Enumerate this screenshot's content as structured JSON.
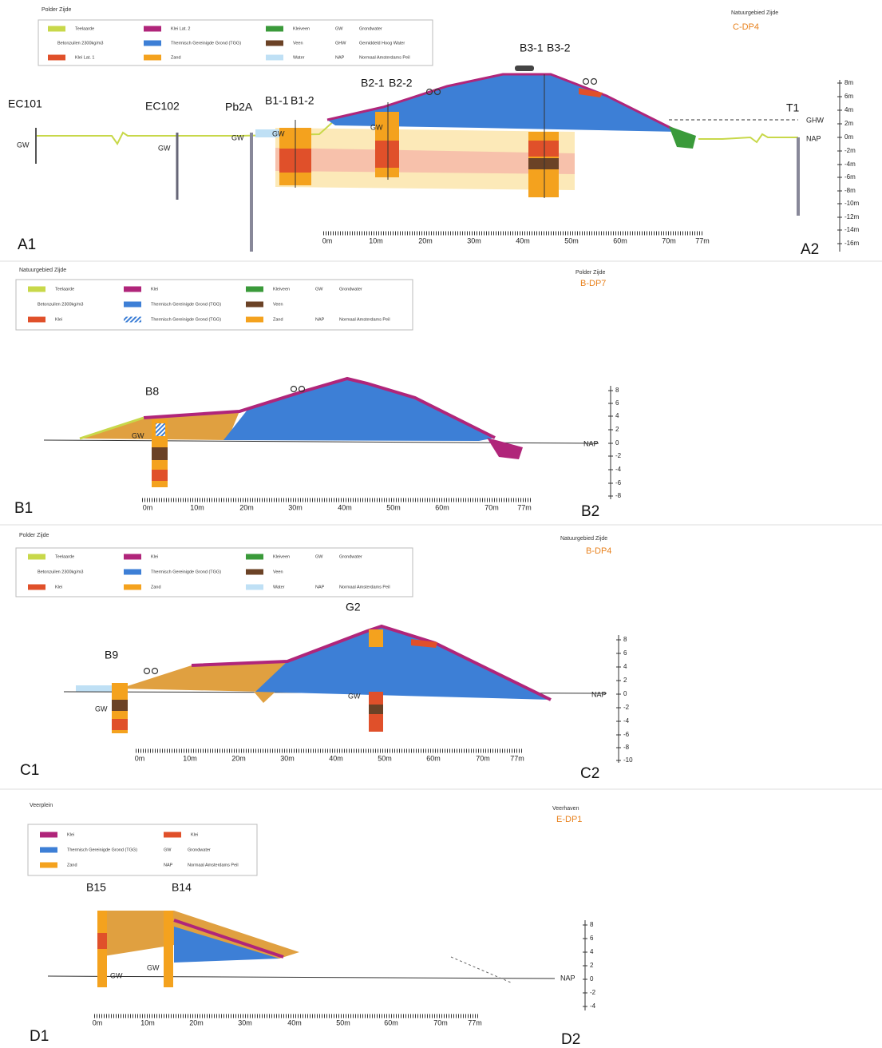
{
  "sections": [
    {
      "legend": {
        "title": "Polder Zijde",
        "items": [
          {
            "label": "Teelaarde",
            "color": "#c8d84a"
          },
          {
            "label": "Betonzuilen 2300kg/m3"
          },
          {
            "label": "Klei Lat. 1",
            "color": "#e0502a"
          },
          {
            "label": "Klei Lat. 2",
            "color": "#b0257a"
          },
          {
            "label": "Thermisch Gereinigde Grond (TGG)",
            "color": "#3d7fd6"
          },
          {
            "label": "Zand",
            "color": "#f4a21e"
          },
          {
            "label": "Kleiveen",
            "color": "#3a9a3a"
          },
          {
            "label": "Veen",
            "color": "#6b4226"
          },
          {
            "label": "Water",
            "color": "#bfe0f5"
          },
          {
            "abbr": "GW",
            "label": "Grondwater"
          },
          {
            "abbr": "GHW",
            "label": "Gemiddeld Hoog Water"
          },
          {
            "abbr": "NAP",
            "label": "Normaal Amsterdams Peil"
          }
        ]
      },
      "side_title": "Natuurgebied Zijde",
      "code": "C-DP4",
      "start_label": "A1",
      "end_label": "A2",
      "boreholes": [
        "EC101",
        "EC102",
        "Pb2A",
        "B1-1",
        "B1-2",
        "B2-1",
        "B2-2",
        "B3-1",
        "B3-2",
        "T1"
      ],
      "markers": [
        "GW",
        "GW",
        "GW",
        "GW",
        "GW",
        "GHW",
        "NAP"
      ],
      "scale": [
        "0m",
        "10m",
        "20m",
        "30m",
        "40m",
        "50m",
        "60m",
        "70m",
        "77m"
      ],
      "depth_axis": [
        "8m",
        "6m",
        "4m",
        "2m",
        "0m",
        "-2m",
        "-4m",
        "-6m",
        "-8m",
        "-10m",
        "-12m",
        "-14m",
        "-16m"
      ]
    },
    {
      "legend": {
        "title": "Natuurgebied Zijde",
        "items": [
          {
            "label": "Teelaarde",
            "color": "#c8d84a"
          },
          {
            "label": "Betonzuilen 2300kg/m3"
          },
          {
            "label": "Klei",
            "color": "#e0502a"
          },
          {
            "label": "Klei",
            "color": "#b0257a"
          },
          {
            "label": "Thermisch Gereinigde Grond (TGG)",
            "color": "#3d7fd6"
          },
          {
            "label": "Thermisch Gereinigde Grond (TGG)",
            "color": "#3d7fd6",
            "hatched": true
          },
          {
            "label": "Kleiveen",
            "color": "#3a9a3a"
          },
          {
            "label": "Veen",
            "color": "#6b4226"
          },
          {
            "label": "Zand",
            "color": "#f4a21e"
          },
          {
            "abbr": "GW",
            "label": "Grondwater"
          },
          {
            "abbr": "NAP",
            "label": "Normaal Amsterdams Peil"
          }
        ]
      },
      "side_title": "Polder Zijde",
      "code": "B-DP7",
      "start_label": "B1",
      "end_label": "B2",
      "boreholes": [
        "B8"
      ],
      "markers": [
        "GW",
        "NAP"
      ],
      "scale": [
        "0m",
        "10m",
        "20m",
        "30m",
        "40m",
        "50m",
        "60m",
        "70m",
        "77m"
      ],
      "depth_axis": [
        "8",
        "6",
        "4",
        "2",
        "0",
        "-2",
        "-4",
        "-6",
        "-8"
      ]
    },
    {
      "legend": {
        "title": "Polder Zijde",
        "items": [
          {
            "label": "Teelaarde",
            "color": "#c8d84a"
          },
          {
            "label": "Betonzuilen 2300kg/m3"
          },
          {
            "label": "Klei",
            "color": "#e0502a"
          },
          {
            "label": "Klei",
            "color": "#b0257a"
          },
          {
            "label": "Thermisch Gereinigde Grond (TGG)",
            "color": "#3d7fd6"
          },
          {
            "label": "Zand",
            "color": "#f4a21e"
          },
          {
            "label": "Kleiveen",
            "color": "#3a9a3a"
          },
          {
            "label": "Veen",
            "color": "#6b4226"
          },
          {
            "label": "Water",
            "color": "#bfe0f5"
          },
          {
            "abbr": "GW",
            "label": "Grondwater"
          },
          {
            "abbr": "NAP",
            "label": "Normaal Amsterdams Peil"
          }
        ]
      },
      "side_title": "Natuurgebied Zijde",
      "code": "B-DP4",
      "start_label": "C1",
      "end_label": "C2",
      "boreholes": [
        "B9",
        "G2"
      ],
      "markers": [
        "GW",
        "GW",
        "NAP"
      ],
      "scale": [
        "0m",
        "10m",
        "20m",
        "30m",
        "40m",
        "50m",
        "60m",
        "70m",
        "77m"
      ],
      "depth_axis": [
        "8",
        "6",
        "4",
        "2",
        "0",
        "-2",
        "-4",
        "-6",
        "-8",
        "-10"
      ]
    },
    {
      "legend": {
        "title": "Veerplein",
        "items": [
          {
            "label": "Klei",
            "color": "#b0257a"
          },
          {
            "label": "Thermisch Gereinigde Grond (TGG)",
            "color": "#3d7fd6"
          },
          {
            "label": "Zand",
            "color": "#f4a21e"
          },
          {
            "label": "Klei",
            "color": "#e0502a"
          },
          {
            "abbr": "GW",
            "label": "Grondwater"
          },
          {
            "abbr": "NAP",
            "label": "Normaal Amsterdams Peil"
          }
        ]
      },
      "side_title": "Veerhaven",
      "code": "E-DP1",
      "start_label": "D1",
      "end_label": "D2",
      "boreholes": [
        "B15",
        "B14"
      ],
      "markers": [
        "GW",
        "GW",
        "NAP"
      ],
      "scale": [
        "0m",
        "10m",
        "20m",
        "30m",
        "40m",
        "50m",
        "60m",
        "70m",
        "77m"
      ],
      "depth_axis": [
        "8",
        "6",
        "4",
        "2",
        "0",
        "-2",
        "-4"
      ]
    }
  ]
}
